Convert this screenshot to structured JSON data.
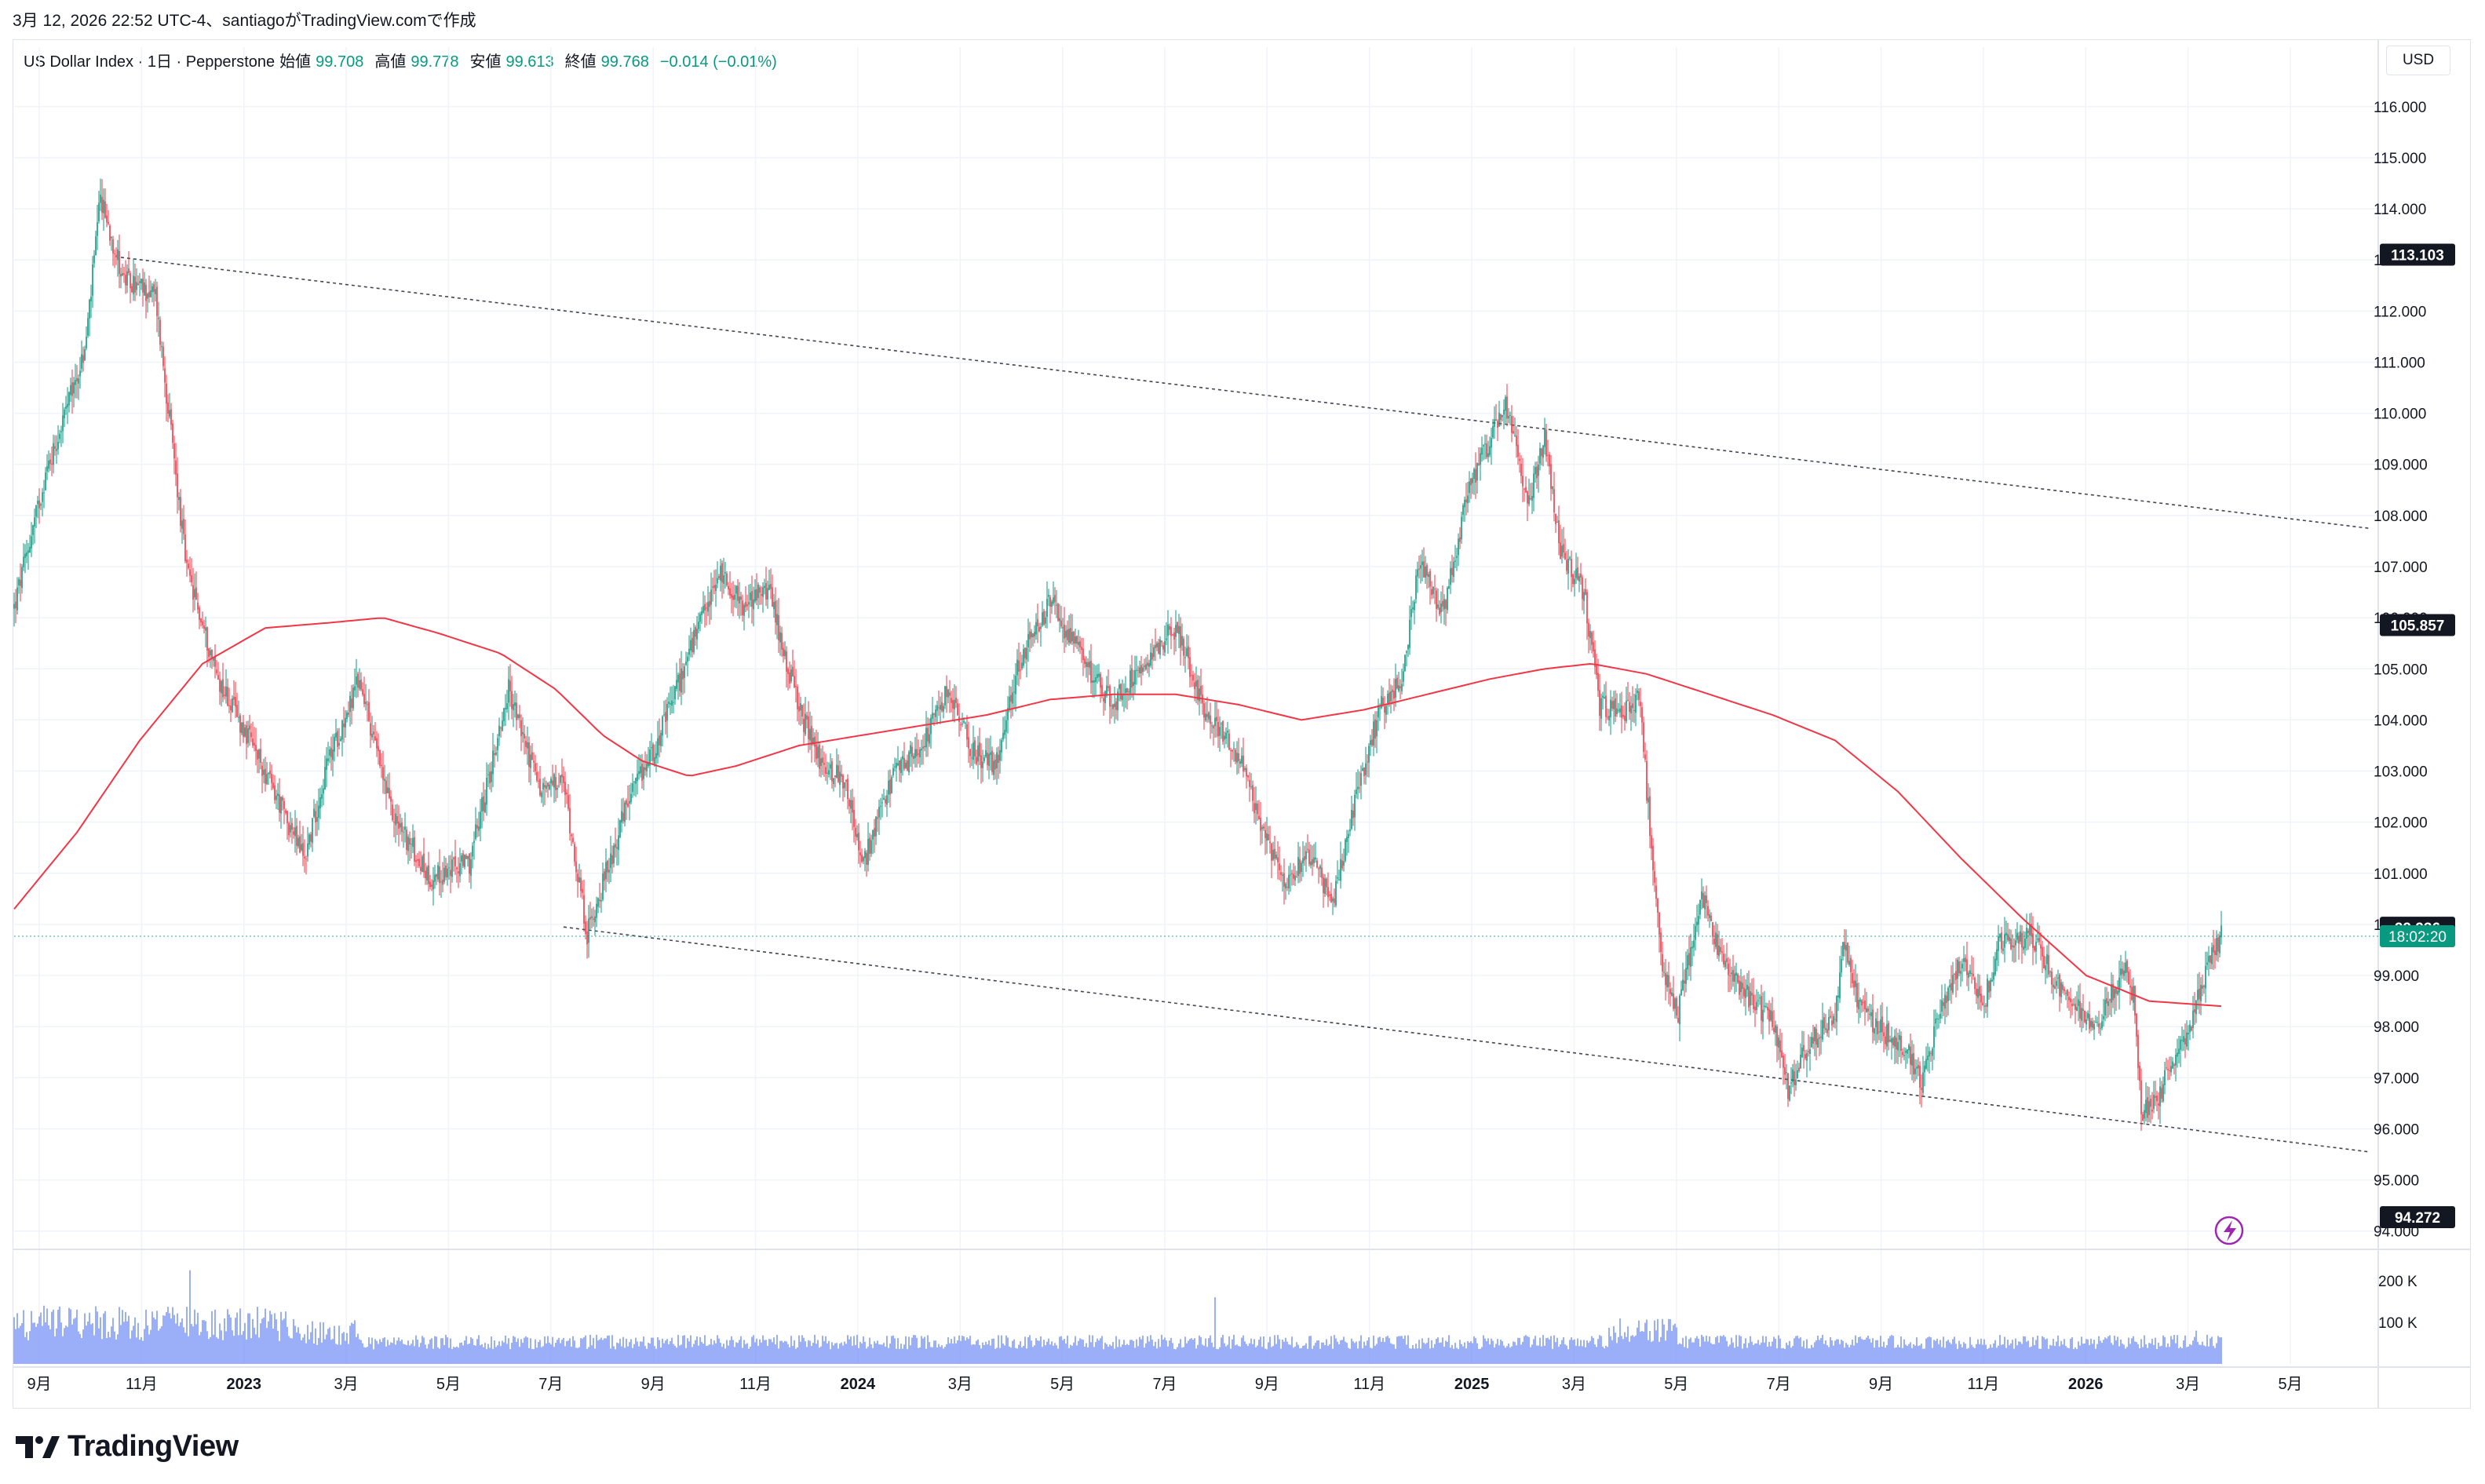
{
  "caption": "3月 12, 2026 22:52 UTC-4、santiagoがTradingView.comで作成",
  "legend": {
    "symbol": "US Dollar Index · 1日 · Pepperstone",
    "open_label": "始値",
    "open": "99.708",
    "high_label": "高値",
    "high": "99.778",
    "low_label": "安値",
    "low": "99.613",
    "close_label": "終値",
    "close": "99.768",
    "change": "−0.014 (−0.01%)"
  },
  "currency": "USD",
  "brand": "TradingView",
  "colors": {
    "up": "#089981",
    "down": "#f23645",
    "ma": "#f23645",
    "volume": "#2962ff",
    "trendline": "#434651",
    "price_label": "#131722",
    "last_price": "#089981"
  },
  "chart_data": {
    "type": "candlestick",
    "x_labels": [
      "9月",
      "11月",
      "2023",
      "3月",
      "5月",
      "7月",
      "9月",
      "11月",
      "2024",
      "3月",
      "5月",
      "7月",
      "9月",
      "11月",
      "2025",
      "3月",
      "5月",
      "7月",
      "9月",
      "11月",
      "2026",
      "3月",
      "5月"
    ],
    "y_ticks": [
      "116.000",
      "115.000",
      "114.000",
      "113.000",
      "112.000",
      "111.000",
      "110.000",
      "109.000",
      "108.000",
      "107.000",
      "106.000",
      "105.000",
      "104.000",
      "103.000",
      "102.000",
      "101.000",
      "100.000",
      "99.000",
      "98.000",
      "97.000",
      "96.000",
      "95.000",
      "94.000"
    ],
    "ylim": [
      93.75,
      116.55
    ],
    "volume_ticks": [
      "200 K",
      "100 K"
    ],
    "price_labels": [
      {
        "value": 113.103,
        "text": "113.103"
      },
      {
        "value": 105.857,
        "text": "105.857"
      },
      {
        "value": 99.936,
        "text": "99.936"
      },
      {
        "value": 94.272,
        "text": "94.272"
      }
    ],
    "last_price": {
      "value": 99.768,
      "countdown": "18:02:20"
    },
    "price_path": [
      [
        0,
        106.2
      ],
      [
        20,
        108.8
      ],
      [
        45,
        111.2
      ],
      [
        55,
        114.2
      ],
      [
        70,
        112.6
      ],
      [
        90,
        112.3
      ],
      [
        110,
        106.9
      ],
      [
        130,
        104.8
      ],
      [
        150,
        103.6
      ],
      [
        170,
        102.3
      ],
      [
        185,
        101.3
      ],
      [
        200,
        103.2
      ],
      [
        220,
        104.8
      ],
      [
        240,
        102.2
      ],
      [
        265,
        100.9
      ],
      [
        290,
        101.2
      ],
      [
        315,
        104.6
      ],
      [
        335,
        102.6
      ],
      [
        350,
        102.8
      ],
      [
        365,
        99.8
      ],
      [
        390,
        102.3
      ],
      [
        410,
        103.6
      ],
      [
        430,
        105.3
      ],
      [
        450,
        106.9
      ],
      [
        465,
        106.2
      ],
      [
        480,
        106.6
      ],
      [
        500,
        104.2
      ],
      [
        515,
        103.1
      ],
      [
        530,
        102.8
      ],
      [
        540,
        101.1
      ],
      [
        560,
        102.9
      ],
      [
        580,
        103.6
      ],
      [
        595,
        104.6
      ],
      [
        610,
        103.4
      ],
      [
        625,
        103.1
      ],
      [
        640,
        105.1
      ],
      [
        660,
        106.3
      ],
      [
        680,
        105.2
      ],
      [
        700,
        104.3
      ],
      [
        720,
        105.2
      ],
      [
        740,
        105.8
      ],
      [
        760,
        104.1
      ],
      [
        780,
        103.3
      ],
      [
        795,
        101.8
      ],
      [
        810,
        100.9
      ],
      [
        825,
        101.4
      ],
      [
        840,
        100.4
      ],
      [
        855,
        102.5
      ],
      [
        870,
        104.2
      ],
      [
        885,
        104.9
      ],
      [
        895,
        107.1
      ],
      [
        910,
        106.0
      ],
      [
        925,
        108.3
      ],
      [
        940,
        109.5
      ],
      [
        950,
        110.1
      ],
      [
        965,
        108.3
      ],
      [
        975,
        109.6
      ],
      [
        985,
        107.3
      ],
      [
        1000,
        106.5
      ],
      [
        1010,
        104.3
      ],
      [
        1025,
        104.1
      ],
      [
        1035,
        104.5
      ],
      [
        1042,
        101.9
      ],
      [
        1050,
        99.2
      ],
      [
        1060,
        98.3
      ],
      [
        1075,
        100.6
      ],
      [
        1090,
        99.1
      ],
      [
        1105,
        98.6
      ],
      [
        1120,
        98.1
      ],
      [
        1130,
        96.8
      ],
      [
        1145,
        97.8
      ],
      [
        1160,
        98.1
      ],
      [
        1165,
        99.8
      ],
      [
        1175,
        98.4
      ],
      [
        1190,
        97.9
      ],
      [
        1205,
        97.6
      ],
      [
        1215,
        96.8
      ],
      [
        1225,
        98.1
      ],
      [
        1240,
        99.3
      ],
      [
        1255,
        98.5
      ],
      [
        1265,
        99.7
      ],
      [
        1285,
        99.8
      ],
      [
        1300,
        98.9
      ],
      [
        1315,
        98.4
      ],
      [
        1325,
        97.9
      ],
      [
        1345,
        99.2
      ],
      [
        1350,
        98.6
      ],
      [
        1355,
        96.3
      ],
      [
        1365,
        96.5
      ],
      [
        1375,
        97.4
      ],
      [
        1385,
        97.9
      ],
      [
        1395,
        99.0
      ],
      [
        1406,
        99.77
      ]
    ],
    "ma_path": [
      [
        0,
        100.3
      ],
      [
        40,
        101.8
      ],
      [
        80,
        103.6
      ],
      [
        120,
        105.1
      ],
      [
        160,
        105.8
      ],
      [
        200,
        105.9
      ],
      [
        235,
        106.0
      ],
      [
        270,
        105.7
      ],
      [
        310,
        105.3
      ],
      [
        345,
        104.6
      ],
      [
        375,
        103.7
      ],
      [
        400,
        103.2
      ],
      [
        430,
        102.9
      ],
      [
        460,
        103.1
      ],
      [
        500,
        103.5
      ],
      [
        540,
        103.7
      ],
      [
        580,
        103.9
      ],
      [
        620,
        104.1
      ],
      [
        660,
        104.4
      ],
      [
        700,
        104.5
      ],
      [
        740,
        104.5
      ],
      [
        780,
        104.3
      ],
      [
        820,
        104.0
      ],
      [
        860,
        104.2
      ],
      [
        900,
        104.5
      ],
      [
        940,
        104.8
      ],
      [
        975,
        105.0
      ],
      [
        1005,
        105.1
      ],
      [
        1040,
        104.9
      ],
      [
        1080,
        104.5
      ],
      [
        1120,
        104.1
      ],
      [
        1160,
        103.6
      ],
      [
        1200,
        102.6
      ],
      [
        1240,
        101.3
      ],
      [
        1280,
        100.1
      ],
      [
        1320,
        99.0
      ],
      [
        1360,
        98.5
      ],
      [
        1406,
        98.4
      ]
    ],
    "trendlines": [
      {
        "from": [
          68,
          113.05
        ],
        "to": [
          1500,
          107.75
        ]
      },
      {
        "from": [
          350,
          99.95
        ],
        "to": [
          1500,
          95.55
        ]
      }
    ]
  }
}
